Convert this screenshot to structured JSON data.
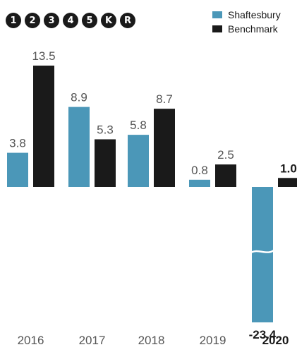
{
  "badges": [
    "1",
    "2",
    "3",
    "4",
    "5",
    "K",
    "R"
  ],
  "colors": {
    "shaftesbury": "#4b97b8",
    "benchmark": "#1a1a1a",
    "tick": "#555555"
  },
  "chart_data": {
    "type": "bar",
    "categories": [
      "2016",
      "2017",
      "2018",
      "2019",
      "2020"
    ],
    "highlight_category": "2020",
    "series": [
      {
        "name": "Shaftesbury",
        "values": [
          3.8,
          8.9,
          5.8,
          0.8,
          -23.4
        ],
        "labels": [
          "3.8",
          "8.9",
          "5.8",
          "0.8",
          "-23.4"
        ]
      },
      {
        "name": "Benchmark",
        "values": [
          13.5,
          5.3,
          8.7,
          2.5,
          1.0
        ],
        "labels": [
          "13.5",
          "5.3",
          "8.7",
          "2.5",
          "1.0"
        ]
      }
    ],
    "broken_axis_bar": {
      "category": "2020",
      "series": "Shaftesbury"
    },
    "legend_position": "top-right",
    "grid": false
  }
}
